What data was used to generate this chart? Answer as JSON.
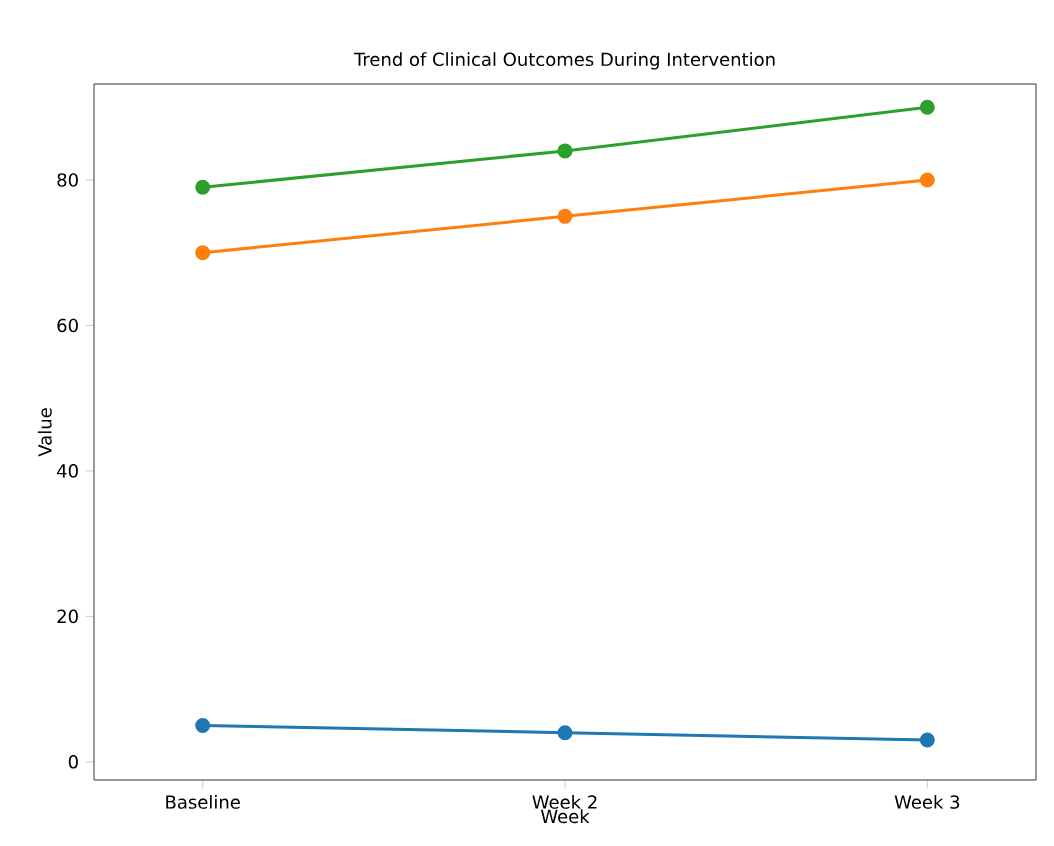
{
  "chart_data": {
    "type": "line",
    "title": "Trend of Clinical Outcomes During Intervention",
    "xlabel": "Week",
    "ylabel": "Value",
    "categories": [
      "Baseline",
      "Week 2",
      "Week 3"
    ],
    "ylim": [
      -2.5,
      93.2
    ],
    "yticks": [
      0,
      20,
      40,
      60,
      80
    ],
    "marker": "circle",
    "line_style": "solid",
    "series": [
      {
        "color": "#1f77b4",
        "values": [
          5,
          4,
          3
        ]
      },
      {
        "color": "#ff7f0e",
        "values": [
          70,
          75,
          80
        ]
      },
      {
        "color": "#2ca02c",
        "values": [
          79,
          84,
          90
        ]
      }
    ]
  }
}
